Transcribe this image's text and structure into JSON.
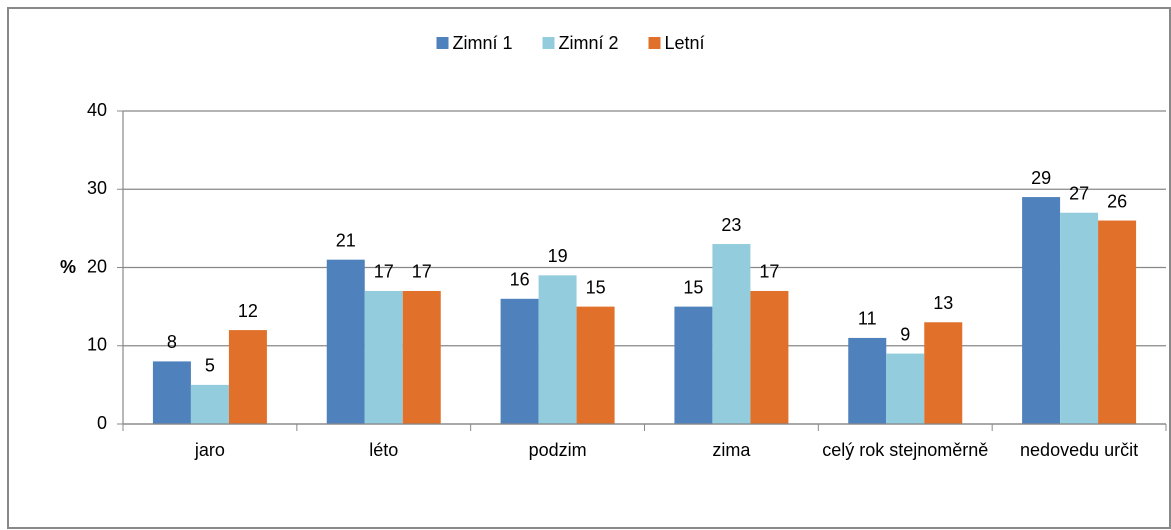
{
  "chart_data": {
    "type": "bar",
    "categories": [
      "jaro",
      "léto",
      "podzim",
      "zima",
      "celý rok stejnoměrně",
      "nedovedu určit"
    ],
    "series": [
      {
        "name": "Zimní 1",
        "color": "#4f81bd",
        "values": [
          8,
          21,
          16,
          15,
          11,
          29
        ]
      },
      {
        "name": "Zimní 2",
        "color": "#93cddd",
        "values": [
          5,
          17,
          19,
          23,
          9,
          27
        ]
      },
      {
        "name": "Letní",
        "color": "#e0702a",
        "values": [
          12,
          17,
          15,
          17,
          13,
          26
        ]
      }
    ],
    "ylabel": "%",
    "ylim": [
      0,
      40
    ],
    "yticks": [
      0,
      10,
      20,
      30,
      40
    ],
    "grid": true,
    "legend": "top"
  }
}
